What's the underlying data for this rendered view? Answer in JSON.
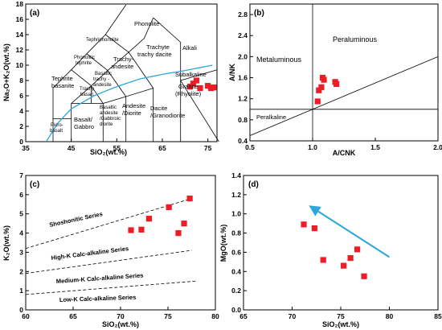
{
  "chart_data": [
    {
      "id": "a",
      "type": "scatter",
      "panel_label": "(a)",
      "xlabel": "SiO₂(wt.%)",
      "ylabel": "Na₂O+K₂O(wt.%)",
      "xlim": [
        35,
        77
      ],
      "ylim": [
        0,
        18
      ],
      "x_ticks": [
        35,
        45,
        55,
        65,
        75
      ],
      "y_ticks": [
        0,
        2,
        4,
        6,
        8,
        10,
        12,
        14,
        16,
        18
      ],
      "field_labels": [
        "Phonolite",
        "Tephriphonolite",
        "Phonolitic tephrite",
        "Tephrite basanite",
        "Trachy-andesite",
        "Trachyte trachy dacite",
        "Basaltic trachy-andesite",
        "Trachy basalt",
        "Alkali",
        "Subalkaline",
        "Granite (Rhyolite)",
        "Basalt/ Gabbro",
        "Basaltic andesite /Gabbroic diorite",
        "Andesite /Diorite",
        "Dacite /Granodiorite",
        "Picro- basalt"
      ],
      "points": [
        [
          71.1,
          7.2
        ],
        [
          71.8,
          7.6
        ],
        [
          72.5,
          8.0
        ],
        [
          73.3,
          7.0
        ],
        [
          75.0,
          7.3
        ],
        [
          75.7,
          7.0
        ],
        [
          76.3,
          7.1
        ]
      ],
      "marker_color": "#ee1c25",
      "curve_color": "#2aa7dc",
      "grid": false
    },
    {
      "id": "b",
      "type": "scatter",
      "panel_label": "(b)",
      "xlabel": "A/CNK",
      "ylabel": "A/NK",
      "xlim": [
        0.5,
        2.0
      ],
      "ylim": [
        0.4,
        3.0
      ],
      "x_ticks": [
        0.5,
        1.0,
        1.5,
        2.0
      ],
      "y_ticks": [
        0.4,
        0.8,
        1.2,
        1.6,
        2.0,
        2.4,
        2.8
      ],
      "region_labels": [
        "Peraluminous",
        "Metaluminous",
        "Peralkaline"
      ],
      "points": [
        [
          1.04,
          1.15
        ],
        [
          1.05,
          1.36
        ],
        [
          1.07,
          1.42
        ],
        [
          1.08,
          1.6
        ],
        [
          1.09,
          1.56
        ],
        [
          1.18,
          1.52
        ],
        [
          1.19,
          1.48
        ]
      ],
      "marker_color": "#ee1c25",
      "grid": false
    },
    {
      "id": "c",
      "type": "scatter",
      "panel_label": "(c)",
      "xlabel": "SiO₂(wt.%)",
      "ylabel": "K₂O(wt.%)",
      "xlim": [
        60,
        80
      ],
      "ylim": [
        0,
        7
      ],
      "x_ticks": [
        60,
        65,
        70,
        75,
        80
      ],
      "y_ticks": [
        0,
        1,
        2,
        3,
        4,
        5,
        6,
        7
      ],
      "series_labels": [
        "Shoshonitic Series",
        "High-K Calc-alkaline Series",
        "Medium-K Calc-alkaline Series",
        "Low-K Calc-alkaline Series"
      ],
      "points": [
        [
          71.1,
          4.15
        ],
        [
          72.2,
          4.18
        ],
        [
          73.0,
          4.75
        ],
        [
          75.1,
          5.35
        ],
        [
          76.1,
          4.0
        ],
        [
          76.7,
          4.5
        ],
        [
          77.3,
          5.8
        ]
      ],
      "marker_color": "#ee1c25",
      "grid": false
    },
    {
      "id": "d",
      "type": "scatter",
      "panel_label": "(d)",
      "xlabel": "SiO₂(wt.%)",
      "ylabel": "MgO(wt.%)",
      "xlim": [
        65,
        85
      ],
      "ylim": [
        0.0,
        1.4
      ],
      "x_ticks": [
        65,
        70,
        75,
        80,
        85
      ],
      "y_ticks": [
        0.0,
        0.2,
        0.4,
        0.6,
        0.8,
        1.0,
        1.2,
        1.4
      ],
      "points": [
        [
          71.2,
          0.89
        ],
        [
          72.3,
          0.85
        ],
        [
          73.2,
          0.52
        ],
        [
          75.3,
          0.46
        ],
        [
          76.0,
          0.54
        ],
        [
          76.7,
          0.63
        ],
        [
          77.4,
          0.35
        ]
      ],
      "arrow_from": [
        80.0,
        0.55
      ],
      "arrow_to": [
        72.0,
        1.07
      ],
      "marker_color": "#ee1c25",
      "arrow_color": "#2aa7dc",
      "grid": false
    }
  ]
}
